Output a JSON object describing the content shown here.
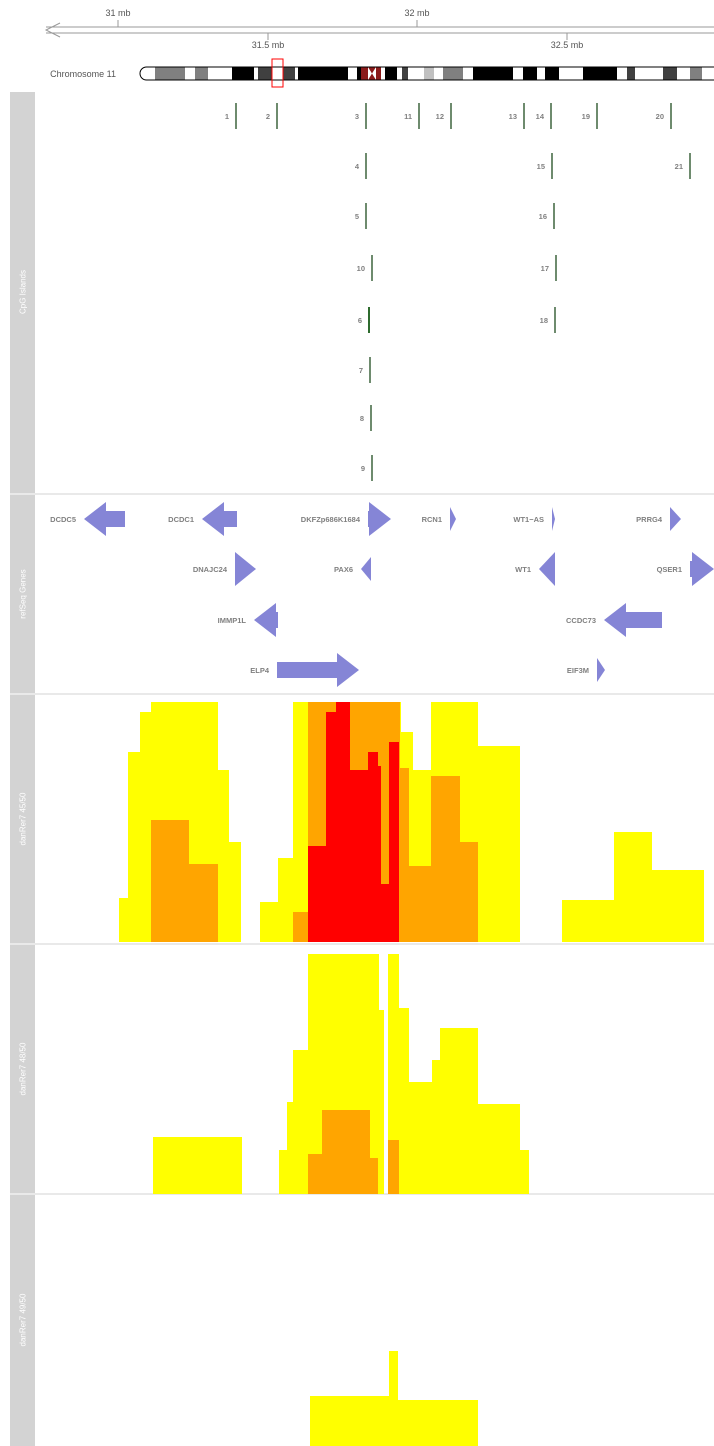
{
  "axis": {
    "top_ticks": [
      "31 mb",
      "32 mb"
    ],
    "bottom_ticks": [
      "31.5 mb",
      "32.5 mb"
    ]
  },
  "chromosome": {
    "label": "Chromosome 11"
  },
  "tracks": {
    "cpg": {
      "title": "CpG Islands"
    },
    "refseq": {
      "title": "refSeq Genes"
    },
    "dr45": {
      "title": "danRer7 45/50"
    },
    "dr48": {
      "title": "danRer7 48/50"
    },
    "dr49": {
      "title": "danRer7 49/50"
    }
  },
  "colors": {
    "panel_title_bg": "#d3d3d3",
    "cpg_bar": "#6e8b6e",
    "cpg_bar_highlight": "#2e6b2e",
    "gene_fill": "#8585d6",
    "heat_low": "#ffff00",
    "heat_mid": "#ffa500",
    "heat_high": "#ff0000",
    "ideogram_highlight": "#ff0000"
  },
  "cpg_islands": [
    {
      "label": "1",
      "row": 0
    },
    {
      "label": "2",
      "row": 0
    },
    {
      "label": "3",
      "row": 0
    },
    {
      "label": "11",
      "row": 0
    },
    {
      "label": "12",
      "row": 0
    },
    {
      "label": "13",
      "row": 0
    },
    {
      "label": "14",
      "row": 0
    },
    {
      "label": "19",
      "row": 0
    },
    {
      "label": "20",
      "row": 0
    },
    {
      "label": "4",
      "row": 1
    },
    {
      "label": "15",
      "row": 1
    },
    {
      "label": "21",
      "row": 1
    },
    {
      "label": "5",
      "row": 2
    },
    {
      "label": "16",
      "row": 2
    },
    {
      "label": "10",
      "row": 3
    },
    {
      "label": "17",
      "row": 3
    },
    {
      "label": "6",
      "row": 4
    },
    {
      "label": "18",
      "row": 4
    },
    {
      "label": "7",
      "row": 5
    },
    {
      "label": "8",
      "row": 6
    },
    {
      "label": "9",
      "row": 7
    }
  ],
  "genes": [
    {
      "label": "DCDC5",
      "strand": "-",
      "row": 0
    },
    {
      "label": "DCDC1",
      "strand": "-",
      "row": 0
    },
    {
      "label": "DKFZp686K1684",
      "strand": "+",
      "row": 0
    },
    {
      "label": "RCN1",
      "strand": "+",
      "row": 0
    },
    {
      "label": "WT1−AS",
      "strand": "+",
      "row": 0
    },
    {
      "label": "PRRG4",
      "strand": "+",
      "row": 0
    },
    {
      "label": "DNAJC24",
      "strand": "+",
      "row": 1
    },
    {
      "label": "PAX6",
      "strand": "-",
      "row": 1
    },
    {
      "label": "WT1",
      "strand": "-",
      "row": 1
    },
    {
      "label": "QSER1",
      "strand": "+",
      "row": 1
    },
    {
      "label": "IMMP1L",
      "strand": "-",
      "row": 2
    },
    {
      "label": "CCDC73",
      "strand": "-",
      "row": 2
    },
    {
      "label": "ELP4",
      "strand": "+",
      "row": 3
    },
    {
      "label": "EIF3M",
      "strand": "+",
      "row": 3
    }
  ]
}
